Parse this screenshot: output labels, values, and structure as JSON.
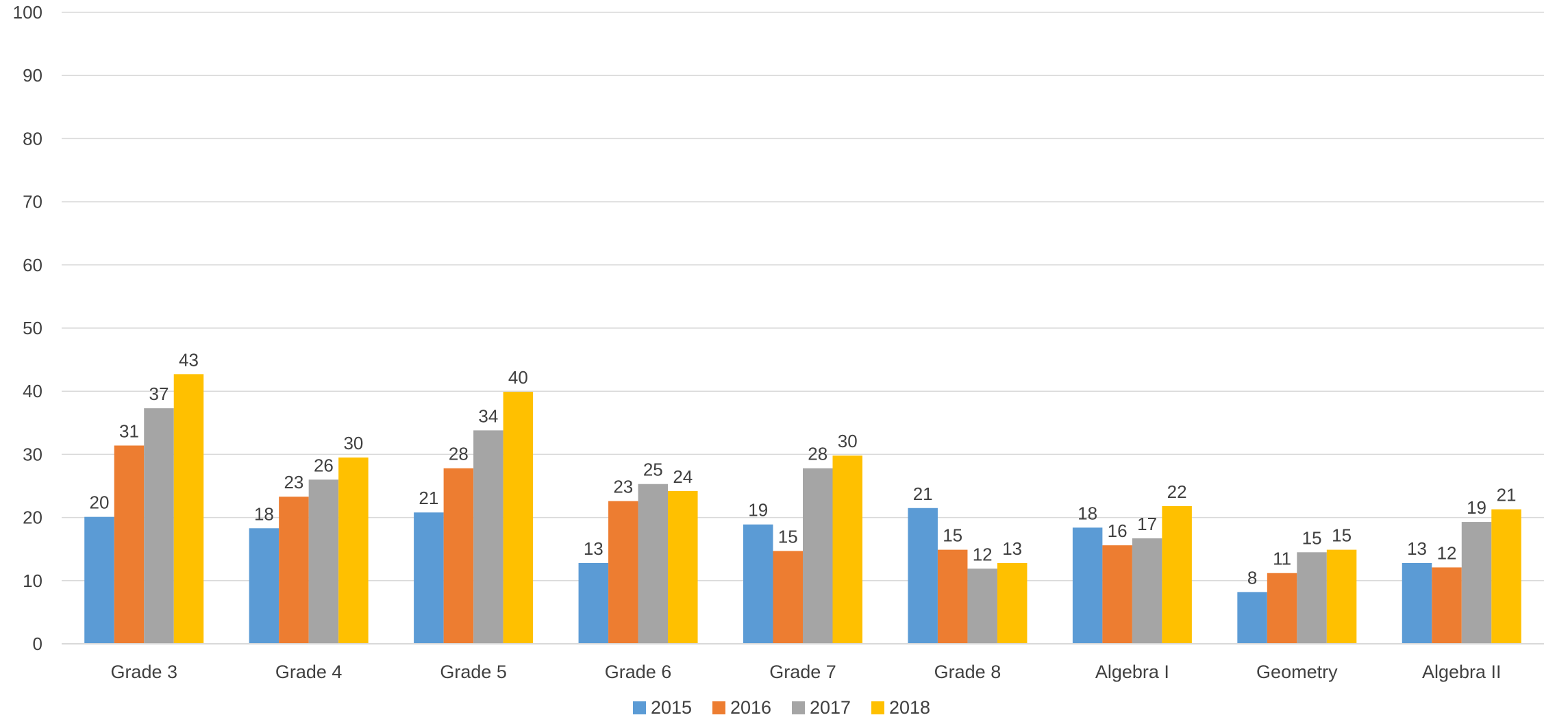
{
  "chart_data": {
    "type": "bar",
    "title": "",
    "xlabel": "",
    "ylabel": "",
    "ylim": [
      0,
      100
    ],
    "yticks": [
      0,
      10,
      20,
      30,
      40,
      50,
      60,
      70,
      80,
      90,
      100
    ],
    "grid": true,
    "legend_position": "bottom",
    "categories": [
      "Grade 3",
      "Grade 4",
      "Grade 5",
      "Grade 6",
      "Grade 7",
      "Grade 8",
      "Algebra I",
      "Geometry",
      "Algebra II"
    ],
    "series": [
      {
        "name": "2015",
        "color": "#5B9BD5",
        "values": [
          20,
          18,
          21,
          13,
          19,
          21,
          18,
          8,
          13
        ],
        "heights": [
          20.1,
          18.3,
          20.8,
          12.8,
          18.9,
          21.5,
          18.4,
          8.2,
          12.8
        ]
      },
      {
        "name": "2016",
        "color": "#ED7D31",
        "values": [
          31,
          23,
          28,
          23,
          15,
          15,
          16,
          11,
          12
        ],
        "heights": [
          31.4,
          23.3,
          27.8,
          22.6,
          14.7,
          14.9,
          15.6,
          11.2,
          12.1
        ]
      },
      {
        "name": "2017",
        "color": "#A5A5A5",
        "values": [
          37,
          26,
          34,
          25,
          28,
          12,
          17,
          15,
          19
        ],
        "heights": [
          37.3,
          26.0,
          33.8,
          25.3,
          27.8,
          11.9,
          16.7,
          14.5,
          19.3
        ]
      },
      {
        "name": "2018",
        "color": "#FFC000",
        "values": [
          43,
          30,
          40,
          24,
          30,
          13,
          22,
          15,
          21
        ],
        "heights": [
          42.7,
          29.5,
          39.9,
          24.2,
          29.8,
          12.8,
          21.8,
          14.9,
          21.3
        ]
      }
    ]
  }
}
